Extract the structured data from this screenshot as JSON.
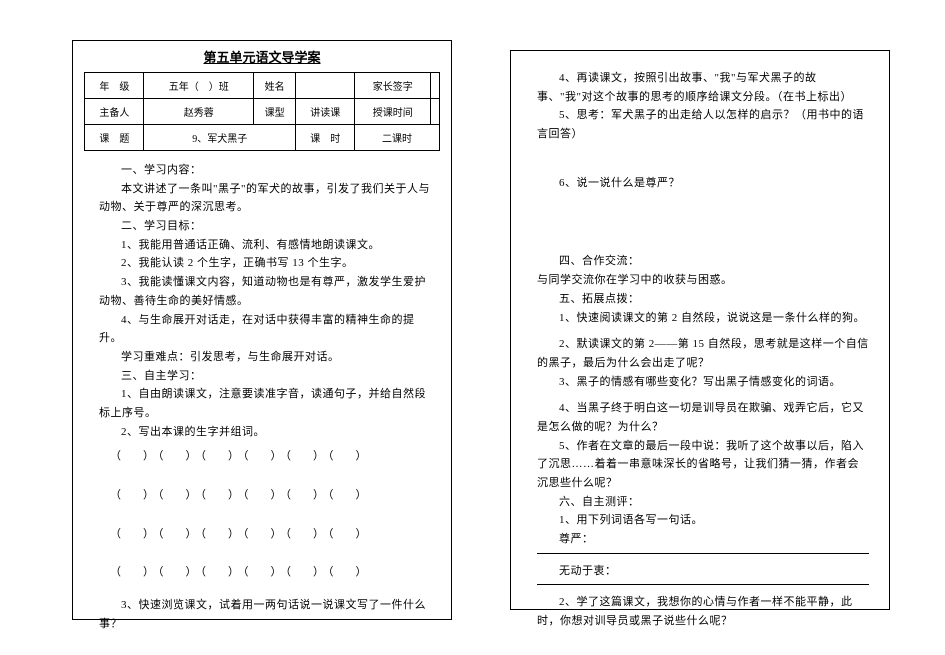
{
  "title": "第五单元语文导学案",
  "hdr": {
    "r1": {
      "c1": "年　级",
      "c2": "五年（　）班",
      "c3": "姓名",
      "c4": "",
      "c5": "家长签字",
      "c6": ""
    },
    "r2": {
      "c1": "主备人",
      "c2": "赵秀蓉",
      "c3": "课型",
      "c4": "讲读课",
      "c5": "授课时间",
      "c6": ""
    },
    "r3": {
      "c1": "课　题",
      "c2": "9、军犬黑子",
      "c3": "课　时",
      "c4": "二课时"
    }
  },
  "left": {
    "s1_h": "一、学习内容：",
    "s1_p": "本文讲述了一条叫\"黑子\"的军犬的故事，引发了我们关于人与动物、关于尊严的深沉思考。",
    "s2_h": "二、学习目标：",
    "s2_1": "1、我能用普通话正确、流利、有感情地朗读课文。",
    "s2_2": "2、我能认读 2 个生字，正确书写 13 个生字。",
    "s2_3": "3、我能读懂课文内容，知道动物也是有尊严，激发学生爱护动物、善待生命的美好情感。",
    "s2_4": "4、与生命展开对话走，在对话中获得丰富的精神生命的提升。",
    "s2_5": "学习重难点：引发思考，与生命展开对话。",
    "s3_h": "三、自主学习：",
    "s3_1": "1、自由朗读课文，注意要读准字音，读通句子，并给自然段标上序号。",
    "s3_2": "2、写出本课的生字并组词。",
    "s3_3": "3、快速浏览课文，试着用一两句话说一说课文写了一件什么事？"
  },
  "right": {
    "q4": "4、再读课文，按照引出故事、\"我\"与军犬黑子的故事、\"我\"对这个故事的思考的顺序给课文分段。（在书上标出）",
    "q5": "5、思考：军犬黑子的出走给人以怎样的启示？（用书中的语言回答）",
    "q6": "6、说一说什么是尊严？",
    "s4_h": "四、合作交流：",
    "s4_p": "与同学交流你在学习中的收获与困惑。",
    "s5_h": "五、拓展点拨：",
    "s5_1": "1、快速阅读课文的第 2 自然段，说说这是一条什么样的狗。",
    "s5_2": "2、默读课文的第 2——第 15 自然段，思考就是这样一个自信的黑子，最后为什么会出走了呢？",
    "s5_3": "3、黑子的情感有哪些变化？写出黑子情感变化的词语。",
    "s5_4": "4、当黑子终于明白这一切是训导员在欺骗、戏弄它后，它又是怎么做的呢？为什么？",
    "s5_5": "5、作者在文章的最后一段中说：我听了这个故事以后，陷入了沉思……着着一串意味深长的省略号，让我们猜一猜，作者会沉思些什么呢？",
    "s6_h": "六、自主测评：",
    "s6_1": "1、用下列词语各写一句话。",
    "s6_1a": "尊严：",
    "s6_1b": "无动于衷：",
    "s6_2": "2、学了这篇课文，我想你的心情与作者一样不能平静，此时，你想对训导员或黑子说些什么呢？"
  }
}
